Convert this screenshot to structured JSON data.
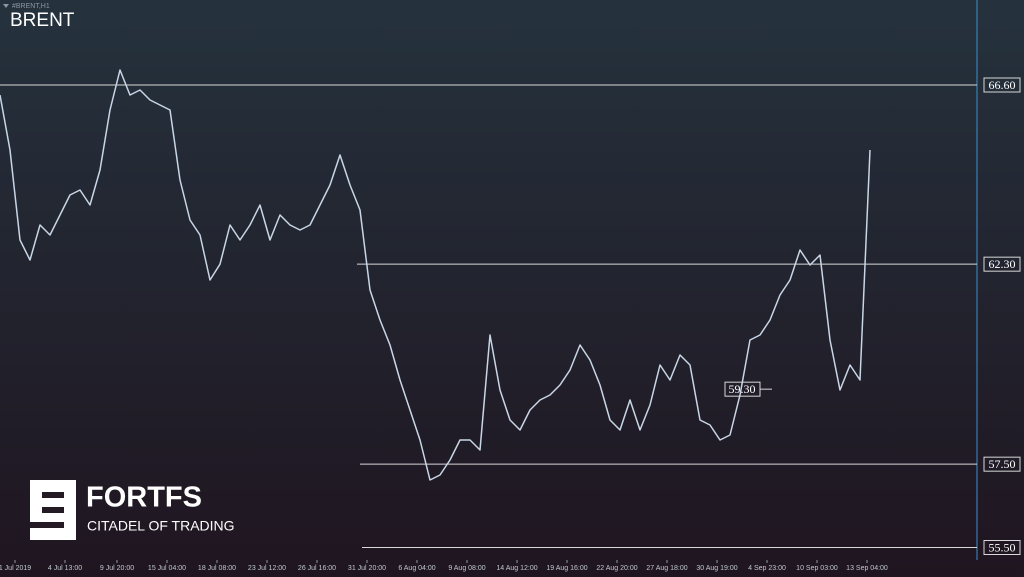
{
  "chart_data": {
    "type": "line",
    "header": "#BRENT,H1",
    "title": "BRENT",
    "values": [
      66.36,
      65.04,
      62.88,
      62.4,
      63.24,
      63.0,
      63.48,
      63.96,
      64.08,
      63.72,
      64.56,
      66.0,
      66.96,
      66.36,
      66.48,
      66.24,
      66.12,
      66.0,
      64.32,
      63.36,
      63.0,
      61.92,
      62.3,
      63.24,
      62.88,
      63.24,
      63.72,
      62.88,
      63.48,
      63.24,
      63.12,
      63.24,
      63.72,
      64.2,
      64.92,
      64.2,
      63.6,
      61.68,
      60.96,
      60.36,
      59.52,
      58.8,
      58.08,
      57.12,
      57.24,
      57.6,
      58.08,
      58.08,
      57.84,
      60.6,
      59.28,
      58.56,
      58.32,
      58.8,
      59.04,
      59.16,
      59.4,
      59.76,
      60.36,
      60.0,
      59.4,
      58.56,
      58.32,
      59.04,
      58.32,
      58.92,
      59.88,
      59.52,
      60.12,
      59.88,
      58.56,
      58.44,
      58.08,
      58.2,
      59.16,
      60.48,
      60.6,
      60.96,
      61.56,
      61.92,
      62.64,
      62.28,
      62.52,
      60.48,
      59.28,
      59.88,
      59.52,
      65.04
    ],
    "color": "#c9d6e6",
    "xlim": [
      0,
      97.7
    ],
    "xticks": [
      {
        "value": 1.5,
        "label": "1 Jul 2019"
      },
      {
        "value": 6.5,
        "label": "4 Jul 13:00"
      },
      {
        "value": 11.7,
        "label": "9 Jul 20:00"
      },
      {
        "value": 16.7,
        "label": "15 Jul 04:00"
      },
      {
        "value": 21.7,
        "label": "18 Jul 08:00"
      },
      {
        "value": 26.7,
        "label": "23 Jul 12:00"
      },
      {
        "value": 31.7,
        "label": "26 Jul 16:00"
      },
      {
        "value": 36.7,
        "label": "31 Jul 20:00"
      },
      {
        "value": 41.7,
        "label": "6 Aug 04:00"
      },
      {
        "value": 46.7,
        "label": "9 Aug 08:00"
      },
      {
        "value": 51.7,
        "label": "14 Aug 12:00"
      },
      {
        "value": 56.7,
        "label": "19 Aug 16:00"
      },
      {
        "value": 61.7,
        "label": "22 Aug 20:00"
      },
      {
        "value": 66.7,
        "label": "27 Aug 18:00"
      },
      {
        "value": 71.7,
        "label": "30 Aug 19:00"
      },
      {
        "value": 76.7,
        "label": "4 Sep 23:00"
      },
      {
        "value": 81.7,
        "label": "10 Sep 03:00"
      },
      {
        "value": 86.7,
        "label": "13 Sep 04:00"
      }
    ],
    "ylim": [
      55.2,
      68.64
    ],
    "yticks": [
      {
        "value": 66.6,
        "label": "66.60"
      },
      {
        "value": 62.3,
        "label": "62.30"
      },
      {
        "value": 57.5,
        "label": "57.50"
      },
      {
        "value": 55.5,
        "label": "55.50"
      }
    ],
    "annotation": {
      "value": 59.3,
      "label": "59.30"
    }
  },
  "logo": {
    "name": "FORTFS",
    "tagline": "CITADEL OF TRADING"
  }
}
